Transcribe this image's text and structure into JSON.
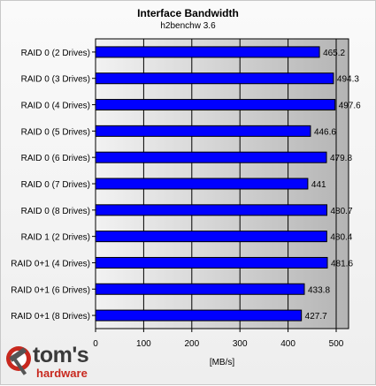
{
  "chart_data": {
    "type": "bar",
    "orientation": "horizontal",
    "title": "Interface Bandwidth",
    "subtitle": "h2benchw 3.6",
    "xlabel": "[MB/s]",
    "xlim": [
      0,
      500
    ],
    "xticks": [
      0,
      100,
      200,
      300,
      400,
      500
    ],
    "grid": true,
    "bar_color": "#0000ff",
    "categories": [
      "RAID 0 (2 Drives)",
      "RAID 0 (3 Drives)",
      "RAID 0 (4 Drives)",
      "RAID 0 (5 Drives)",
      "RAID 0 (6 Drives)",
      "RAID 0 (7 Drives)",
      "RAID 0 (8 Drives)",
      "RAID 1 (2 Drives)",
      "RAID 0+1 (4 Drives)",
      "RAID 0+1 (6 Drives)",
      "RAID 0+1 (8 Drives)"
    ],
    "values": [
      465.2,
      494.3,
      497.6,
      446.6,
      479.8,
      441,
      480.7,
      480.4,
      481.6,
      433.8,
      427.7
    ],
    "value_labels": [
      "465.2",
      "494.3",
      "497.6",
      "446.6",
      "479.8",
      "441",
      "480.7",
      "480.4",
      "481.6",
      "433.8",
      "427.7"
    ]
  },
  "logo": {
    "main": "tom's",
    "sub": "hardware"
  }
}
